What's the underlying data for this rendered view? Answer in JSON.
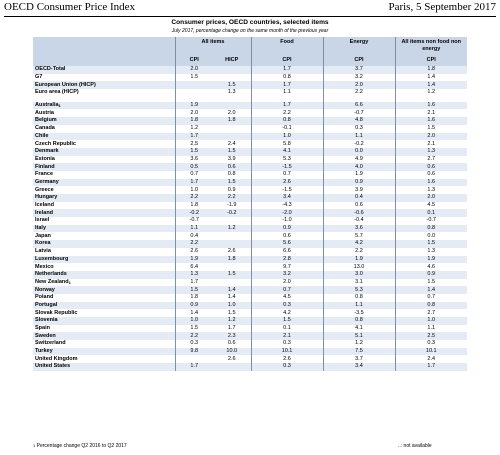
{
  "header": {
    "left": "OECD Consumer Price Index",
    "right": "Paris, 5 September 2017"
  },
  "table_title": "Consumer prices, OECD countries, selected items",
  "table_subtitle": "July 2017, percentage change on the same month of the previous year",
  "columns": {
    "all_items": "All items",
    "food": "Food",
    "energy": "Energy",
    "core": "All items non food non energy",
    "cpi": "CPI",
    "hicp": "HICP"
  },
  "aggregates": [
    {
      "name": "OECD-Total",
      "cpi": "2.0",
      "hicp": "",
      "food": "1.7",
      "energy": "3.7",
      "core": "1.8"
    },
    {
      "name": "G7",
      "cpi": "1.5",
      "hicp": "",
      "food": "0.8",
      "energy": "3.2",
      "core": "1.4"
    },
    {
      "name": "European Union (HICP)",
      "cpi": "",
      "hicp": "1.5",
      "food": "1.7",
      "energy": "2.0",
      "core": "1.4"
    },
    {
      "name": "Euro area (HICP)",
      "cpi": "",
      "hicp": "1.3",
      "food": "1.1",
      "energy": "2.2",
      "core": "1.2"
    }
  ],
  "countries": [
    {
      "name": "Australia",
      "sup": "1",
      "cpi": "1.9",
      "hicp": "",
      "food": "1.7",
      "energy": "6.6",
      "core": "1.6"
    },
    {
      "name": "Austria",
      "sup": "",
      "cpi": "2.0",
      "hicp": "2.0",
      "food": "2.2",
      "energy": "-0.7",
      "core": "2.1"
    },
    {
      "name": "Belgium",
      "sup": "",
      "cpi": "1.8",
      "hicp": "1.8",
      "food": "0.8",
      "energy": "4.8",
      "core": "1.6"
    },
    {
      "name": "Canada",
      "sup": "",
      "cpi": "1.2",
      "hicp": "",
      "food": "-0.1",
      "energy": "0.3",
      "core": "1.5"
    },
    {
      "name": "Chile",
      "sup": "",
      "cpi": "1.7",
      "hicp": "",
      "food": "1.0",
      "energy": "1.1",
      "core": "2.0"
    },
    {
      "name": "Czech Republic",
      "sup": "",
      "cpi": "2.5",
      "hicp": "2.4",
      "food": "5.8",
      "energy": "-0.2",
      "core": "2.1"
    },
    {
      "name": "Denmark",
      "sup": "",
      "cpi": "1.5",
      "hicp": "1.5",
      "food": "4.1",
      "energy": "0.0",
      "core": "1.3"
    },
    {
      "name": "Estonia",
      "sup": "",
      "cpi": "3.6",
      "hicp": "3.9",
      "food": "5.3",
      "energy": "4.9",
      "core": "2.7"
    },
    {
      "name": "Finland",
      "sup": "",
      "cpi": "0.5",
      "hicp": "0.6",
      "food": "-1.5",
      "energy": "4.0",
      "core": "0.6"
    },
    {
      "name": "France",
      "sup": "",
      "cpi": "0.7",
      "hicp": "0.8",
      "food": "0.7",
      "energy": "1.9",
      "core": "0.6"
    },
    {
      "name": "Germany",
      "sup": "",
      "cpi": "1.7",
      "hicp": "1.5",
      "food": "2.6",
      "energy": "0.9",
      "core": "1.6"
    },
    {
      "name": "Greece",
      "sup": "",
      "cpi": "1.0",
      "hicp": "0.9",
      "food": "-1.5",
      "energy": "3.9",
      "core": "1.3"
    },
    {
      "name": "Hungary",
      "sup": "",
      "cpi": "2.2",
      "hicp": "2.2",
      "food": "3.4",
      "energy": "0.4",
      "core": "2.0"
    },
    {
      "name": "Iceland",
      "sup": "",
      "cpi": "1.8",
      "hicp": "-1.9",
      "food": "-4.3",
      "energy": "0.6",
      "core": "4.5"
    },
    {
      "name": "Ireland",
      "sup": "",
      "cpi": "-0.2",
      "hicp": "-0.2",
      "food": "-2.0",
      "energy": "-0.6",
      "core": "0.1"
    },
    {
      "name": "Israel",
      "sup": "",
      "cpi": "-0.7",
      "hicp": "",
      "food": "-1.0",
      "energy": "-0.4",
      "core": "-0.7"
    },
    {
      "name": "Italy",
      "sup": "",
      "cpi": "1.1",
      "hicp": "1.2",
      "food": "0.9",
      "energy": "3.6",
      "core": "0.8"
    },
    {
      "name": "Japan",
      "sup": "",
      "cpi": "0.4",
      "hicp": "",
      "food": "0.6",
      "energy": "5.7",
      "core": "0.0"
    },
    {
      "name": "Korea",
      "sup": "",
      "cpi": "2.2",
      "hicp": "",
      "food": "5.6",
      "energy": "4.2",
      "core": "1.5"
    },
    {
      "name": "Latvia",
      "sup": "",
      "cpi": "2.6",
      "hicp": "2.6",
      "food": "6.6",
      "energy": "2.2",
      "core": "1.3"
    },
    {
      "name": "Luxembourg",
      "sup": "",
      "cpi": "1.9",
      "hicp": "1.8",
      "food": "2.8",
      "energy": "1.9",
      "core": "1.9"
    },
    {
      "name": "Mexico",
      "sup": "",
      "cpi": "6.4",
      "hicp": "",
      "food": "9.7",
      "energy": "13.0",
      "core": "4.6"
    },
    {
      "name": "Netherlands",
      "sup": "",
      "cpi": "1.3",
      "hicp": "1.5",
      "food": "3.2",
      "energy": "3.0",
      "core": "0.9"
    },
    {
      "name": "New Zealand",
      "sup": "1",
      "cpi": "1.7",
      "hicp": "",
      "food": "2.0",
      "energy": "3.1",
      "core": "1.5"
    },
    {
      "name": "Norway",
      "sup": "",
      "cpi": "1.5",
      "hicp": "1.4",
      "food": "0.7",
      "energy": "5.3",
      "core": "1.4"
    },
    {
      "name": "Poland",
      "sup": "",
      "cpi": "1.8",
      "hicp": "1.4",
      "food": "4.5",
      "energy": "0.8",
      "core": "0.7"
    },
    {
      "name": "Portugal",
      "sup": "",
      "cpi": "0.9",
      "hicp": "1.0",
      "food": "0.3",
      "energy": "1.1",
      "core": "0.8"
    },
    {
      "name": "Slovak Republic",
      "sup": "",
      "cpi": "1.4",
      "hicp": "1.5",
      "food": "4.2",
      "energy": "-3.5",
      "core": "2.7"
    },
    {
      "name": "Slovenia",
      "sup": "",
      "cpi": "1.0",
      "hicp": "1.2",
      "food": "1.5",
      "energy": "0.8",
      "core": "1.0"
    },
    {
      "name": "Spain",
      "sup": "",
      "cpi": "1.5",
      "hicp": "1.7",
      "food": "0.1",
      "energy": "4.1",
      "core": "1.1"
    },
    {
      "name": "Sweden",
      "sup": "",
      "cpi": "2.2",
      "hicp": "2.3",
      "food": "2.1",
      "energy": "5.1",
      "core": "2.5"
    },
    {
      "name": "Switzerland",
      "sup": "",
      "cpi": "0.3",
      "hicp": "0.6",
      "food": "0.3",
      "energy": "1.2",
      "core": "0.3"
    },
    {
      "name": "Turkey",
      "sup": "",
      "cpi": "9.8",
      "hicp": "10.0",
      "food": "10.1",
      "energy": "7.5",
      "core": "10.1"
    },
    {
      "name": "United Kingdom",
      "sup": "",
      "cpi": "",
      "hicp": "2.6",
      "food": "2.6",
      "energy": "3.7",
      "core": "2.4"
    },
    {
      "name": "United States",
      "sup": "",
      "cpi": "1.7",
      "hicp": "",
      "food": "0.3",
      "energy": "3.4",
      "core": "1.7"
    }
  ],
  "footnote": "Percentage change Q2 2016 to Q2 2017",
  "footnote_marker": "1",
  "na_note": "..: not available"
}
